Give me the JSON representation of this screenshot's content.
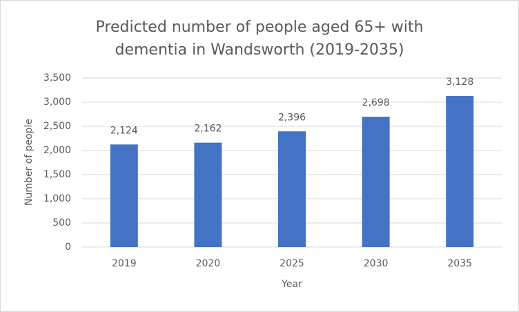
{
  "chart_data": {
    "type": "bar",
    "title": [
      "Predicted number of people aged 65+ with",
      "dementia in Wandsworth (2019-2035)"
    ],
    "x_label": "Year",
    "y_label": "Number of people",
    "categories": [
      "2019",
      "2020",
      "2025",
      "2030",
      "2035"
    ],
    "values": [
      2124,
      2162,
      2396,
      2698,
      3128
    ],
    "value_labels": [
      "2,124",
      "2,162",
      "2,396",
      "2,698",
      "3,128"
    ],
    "color": "#4472c4",
    "ylim": [
      0,
      3500
    ],
    "yticks": [
      0,
      500,
      {
        "value": 1000,
        "label": "1,000"
      },
      {
        "value": 1500,
        "label": "1,500"
      },
      {
        "value": 2000,
        "label": "2,000"
      },
      {
        "value": 2500,
        "label": "2,500"
      },
      {
        "value": 3000,
        "label": "3,000"
      },
      {
        "value": 3500,
        "label": "3,500"
      }
    ],
    "grid": true
  }
}
